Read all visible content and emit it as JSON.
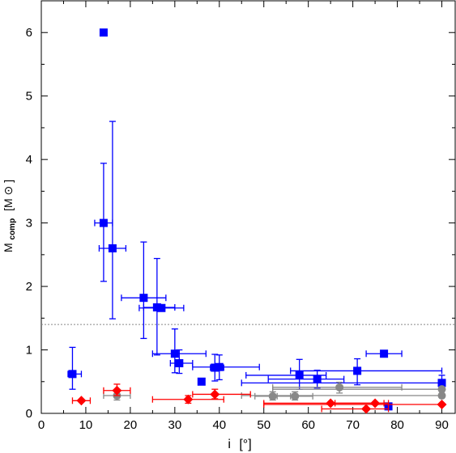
{
  "chart_data": {
    "type": "scatter",
    "xlabel": "i [°]",
    "ylabel": "M_comp [M_⊙]",
    "xlabel_main": "i",
    "xlabel_unit": "[°]",
    "ylabel_main": "M",
    "ylabel_sub": "comp",
    "ylabel_unit_open": "[M",
    "ylabel_unit_close": "]",
    "xlim": [
      0,
      93
    ],
    "ylim": [
      0,
      6.5
    ],
    "xticks": [
      "0",
      "10",
      "20",
      "30",
      "40",
      "50",
      "60",
      "70",
      "80",
      "90"
    ],
    "yticks": [
      "0",
      "1",
      "2",
      "3",
      "4",
      "5",
      "6"
    ],
    "grid": false,
    "reference_line": {
      "y": 1.4,
      "style": "dotted",
      "color": "#888888"
    },
    "series": [
      {
        "marker": "square",
        "color": "#0000ff",
        "points": [
          {
            "x": 7,
            "y": 0.62,
            "xerr": [
              6,
              9
            ],
            "yerr": [
              0.38,
              1.04
            ]
          },
          {
            "x": 14,
            "y": 6.0
          },
          {
            "x": 14,
            "y": 3.0,
            "xerr": [
              12,
              16
            ],
            "yerr": [
              2.08,
              3.94
            ]
          },
          {
            "x": 16,
            "y": 2.6,
            "xerr": [
              13,
              19
            ],
            "yerr": [
              1.49,
              4.6
            ]
          },
          {
            "x": 23,
            "y": 1.82,
            "xerr": [
              18,
              28
            ],
            "yerr": [
              1.18,
              2.7
            ]
          },
          {
            "x": 26,
            "y": 1.67,
            "xerr": [
              23,
              30
            ],
            "yerr": [
              0.92,
              2.44
            ]
          },
          {
            "x": 27,
            "y": 1.66,
            "xerr": [
              22,
              32
            ]
          },
          {
            "x": 30,
            "y": 0.94,
            "xerr": [
              25,
              37
            ],
            "yerr": [
              0.64,
              1.33
            ]
          },
          {
            "x": 31,
            "y": 0.79,
            "xerr": [
              29,
              34
            ],
            "yerr": [
              0.63,
              1.0
            ]
          },
          {
            "x": 36,
            "y": 0.5
          },
          {
            "x": 39,
            "y": 0.72,
            "xerr": [
              38,
              41
            ],
            "yerr": [
              0.51,
              0.93
            ]
          },
          {
            "x": 40,
            "y": 0.73,
            "xerr": [
              34,
              49
            ],
            "yerr": [
              0.53,
              0.92
            ]
          },
          {
            "x": 58,
            "y": 0.6,
            "xerr": [
              46,
              64
            ],
            "yerr": [
              0.38,
              0.85
            ]
          },
          {
            "x": 62,
            "y": 0.54,
            "xerr": [
              51,
              68
            ],
            "yerr": [
              0.4,
              0.68
            ]
          },
          {
            "x": 71,
            "y": 0.67,
            "xerr": [
              56,
              90
            ],
            "yerr": [
              0.45,
              0.86
            ]
          },
          {
            "x": 77,
            "y": 0.94,
            "xerr": [
              73,
              81
            ]
          },
          {
            "x": 78,
            "y": 0.11
          },
          {
            "x": 90,
            "y": 0.48,
            "xerr": [
              45,
              90
            ],
            "yerr": [
              0.35,
              0.6
            ]
          }
        ]
      },
      {
        "marker": "circle",
        "color": "#888888",
        "points": [
          {
            "x": 17,
            "y": 0.28,
            "xerr": [
              14,
              20
            ],
            "yerr": [
              0.21,
              0.36
            ]
          },
          {
            "x": 52,
            "y": 0.27,
            "xerr": [
              48,
              56
            ],
            "yerr": [
              0.21,
              0.34
            ]
          },
          {
            "x": 57,
            "y": 0.27,
            "xerr": [
              53,
              61
            ],
            "yerr": [
              0.21,
              0.34
            ]
          },
          {
            "x": 67,
            "y": 0.41,
            "xerr": [
              52,
              81
            ],
            "yerr": [
              0.32,
              0.49
            ]
          },
          {
            "x": 90,
            "y": 0.38,
            "xerr": [
              52,
              90
            ]
          },
          {
            "x": 90,
            "y": 0.28,
            "xerr": [
              45,
              90
            ]
          }
        ]
      },
      {
        "marker": "diamond",
        "color": "#ff0000",
        "points": [
          {
            "x": 9,
            "y": 0.2,
            "xerr": [
              7,
              11
            ]
          },
          {
            "x": 17,
            "y": 0.36,
            "xerr": [
              14,
              20
            ],
            "yerr": [
              0.28,
              0.46
            ]
          },
          {
            "x": 33,
            "y": 0.22,
            "xerr": [
              25,
              41
            ],
            "yerr": [
              0.16,
              0.28
            ]
          },
          {
            "x": 39,
            "y": 0.3,
            "xerr": [
              34,
              47
            ],
            "yerr": [
              0.23,
              0.38
            ]
          },
          {
            "x": 65,
            "y": 0.16,
            "xerr": [
              50,
              77
            ]
          },
          {
            "x": 73,
            "y": 0.07,
            "xerr": [
              63,
              78
            ]
          },
          {
            "x": 75,
            "y": 0.16,
            "xerr": [
              66,
              78
            ]
          },
          {
            "x": 90,
            "y": 0.14,
            "xerr": [
              50,
              90
            ]
          }
        ]
      }
    ]
  }
}
